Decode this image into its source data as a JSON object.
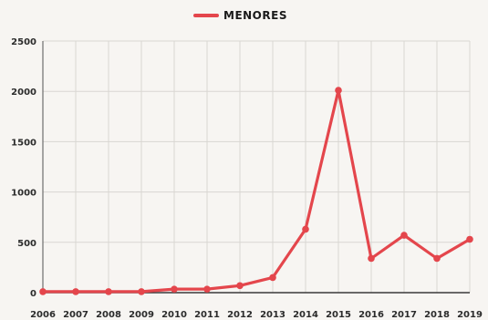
{
  "chart_data": {
    "type": "line",
    "legend": {
      "position": "top-center"
    },
    "grid": true,
    "color": "#e4464c",
    "x": [
      "2006",
      "2007",
      "2008",
      "2009",
      "2010",
      "2011",
      "2012",
      "2013",
      "2014",
      "2015",
      "2016",
      "2017",
      "2018",
      "2019"
    ],
    "series": [
      {
        "name": "MENORES",
        "values": [
          10,
          10,
          10,
          10,
          35,
          35,
          70,
          150,
          630,
          2010,
          340,
          570,
          340,
          530
        ]
      }
    ],
    "yticks": [
      0,
      500,
      1000,
      1500,
      2000,
      2500
    ],
    "ylim": [
      0,
      2500
    ]
  }
}
